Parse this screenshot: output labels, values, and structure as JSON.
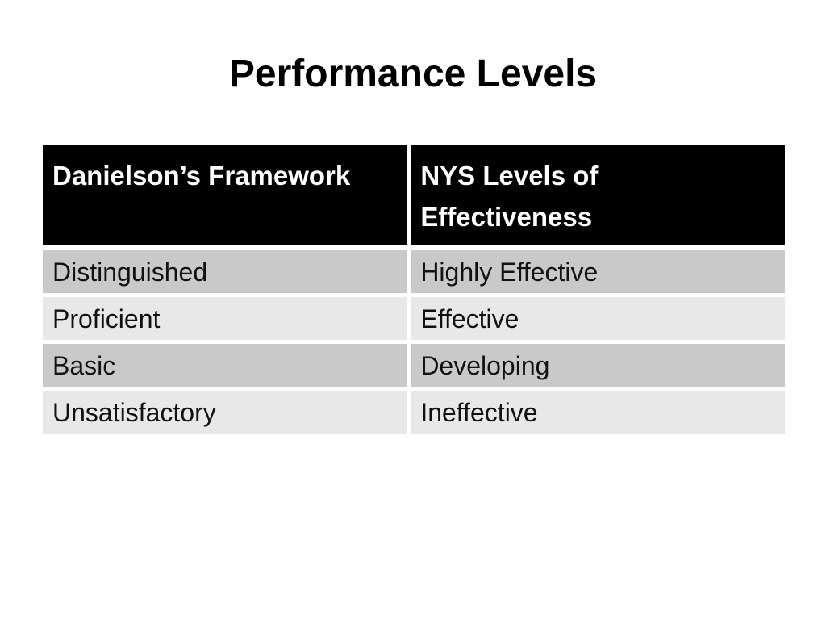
{
  "slide": {
    "title": "Performance Levels",
    "table": {
      "columns": [
        "Danielson’s Framework",
        "NYS Levels of Effectiveness"
      ],
      "rows": [
        [
          "Distinguished",
          "Highly Effective"
        ],
        [
          "Proficient",
          "Effective"
        ],
        [
          "Basic",
          "Developing"
        ],
        [
          "Unsatisfactory",
          "Ineffective"
        ]
      ],
      "colors": {
        "header_bg": "#000000",
        "header_text": "#ffffff",
        "row_dark_bg": "#c9c9c9",
        "row_light_bg": "#e8e8e8",
        "body_text": "#111111",
        "divider": "#ffffff"
      }
    }
  }
}
